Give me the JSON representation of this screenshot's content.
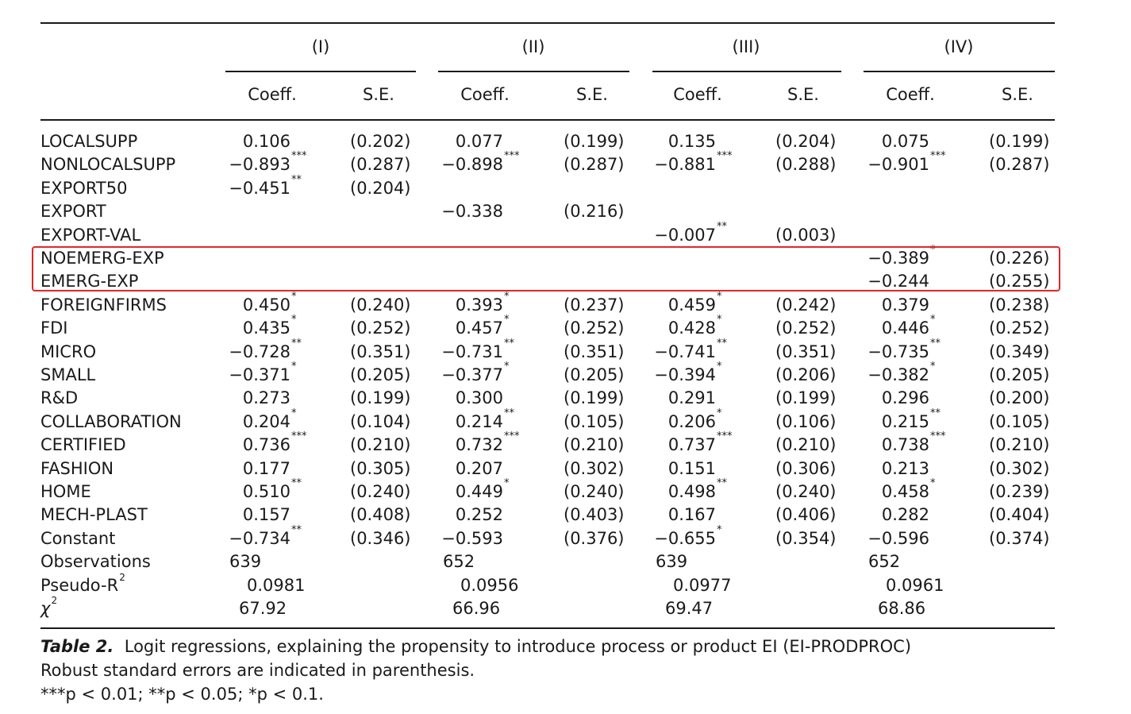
{
  "models": [
    {
      "name": "(I)",
      "coeff_label": "Coeff.",
      "se_label": "S.E."
    },
    {
      "name": "(II)",
      "coeff_label": "Coeff.",
      "se_label": "S.E."
    },
    {
      "name": "(III)",
      "coeff_label": "Coeff.",
      "se_label": "S.E."
    },
    {
      "name": "(IV)",
      "coeff_label": "Coeff.",
      "se_label": "S.E."
    }
  ],
  "rows": [
    {
      "label": "LOCALSUPP",
      "cells": [
        [
          "0.106",
          "",
          "(0.202)"
        ],
        [
          "0.077",
          "",
          "(0.199)"
        ],
        [
          "0.135",
          "",
          "(0.204)"
        ],
        [
          "0.075",
          "",
          "(0.199)"
        ]
      ]
    },
    {
      "label": "NONLOCALSUPP",
      "cells": [
        [
          "−0.893",
          "***",
          "(0.287)"
        ],
        [
          "−0.898",
          "***",
          "(0.287)"
        ],
        [
          "−0.881",
          "***",
          "(0.288)"
        ],
        [
          "−0.901",
          "***",
          "(0.287)"
        ]
      ]
    },
    {
      "label": "EXPORT50",
      "cells": [
        [
          "−0.451",
          "**",
          "(0.204)"
        ],
        [
          "",
          "",
          ""
        ],
        [
          "",
          "",
          ""
        ],
        [
          "",
          "",
          ""
        ]
      ]
    },
    {
      "label": "EXPORT",
      "cells": [
        [
          "",
          "",
          ""
        ],
        [
          "−0.338",
          "",
          "(0.216)"
        ],
        [
          "",
          "",
          ""
        ],
        [
          "",
          "",
          ""
        ]
      ]
    },
    {
      "label": "EXPORT-VAL",
      "cells": [
        [
          "",
          "",
          ""
        ],
        [
          "",
          "",
          ""
        ],
        [
          "−0.007",
          "**",
          "(0.003)"
        ],
        [
          "",
          "",
          ""
        ]
      ]
    },
    {
      "label": "NOEMERG-EXP",
      "cells": [
        [
          "",
          "",
          ""
        ],
        [
          "",
          "",
          ""
        ],
        [
          "",
          "",
          ""
        ],
        [
          "−0.389",
          "*",
          "(0.226)"
        ]
      ]
    },
    {
      "label": "EMERG-EXP",
      "cells": [
        [
          "",
          "",
          ""
        ],
        [
          "",
          "",
          ""
        ],
        [
          "",
          "",
          ""
        ],
        [
          "−0.244",
          "",
          "(0.255)"
        ]
      ]
    },
    {
      "label": "FOREIGNFIRMS",
      "cells": [
        [
          "0.450",
          "*",
          "(0.240)"
        ],
        [
          "0.393",
          "*",
          "(0.237)"
        ],
        [
          "0.459",
          "*",
          "(0.242)"
        ],
        [
          "0.379",
          "",
          "(0.238)"
        ]
      ]
    },
    {
      "label": "FDI",
      "cells": [
        [
          "0.435",
          "*",
          "(0.252)"
        ],
        [
          "0.457",
          "*",
          "(0.252)"
        ],
        [
          "0.428",
          "*",
          "(0.252)"
        ],
        [
          "0.446",
          "*",
          "(0.252)"
        ]
      ]
    },
    {
      "label": "MICRO",
      "cells": [
        [
          "−0.728",
          "**",
          "(0.351)"
        ],
        [
          "−0.731",
          "**",
          "(0.351)"
        ],
        [
          "−0.741",
          "**",
          "(0.351)"
        ],
        [
          "−0.735",
          "**",
          "(0.349)"
        ]
      ]
    },
    {
      "label": "SMALL",
      "cells": [
        [
          "−0.371",
          "*",
          "(0.205)"
        ],
        [
          "−0.377",
          "*",
          "(0.205)"
        ],
        [
          "−0.394",
          "*",
          "(0.206)"
        ],
        [
          "−0.382",
          "*",
          "(0.205)"
        ]
      ]
    },
    {
      "label": "R&D",
      "cells": [
        [
          "0.273",
          "",
          "(0.199)"
        ],
        [
          "0.300",
          "",
          "(0.199)"
        ],
        [
          "0.291",
          "",
          "(0.199)"
        ],
        [
          "0.296",
          "",
          "(0.200)"
        ]
      ]
    },
    {
      "label": "COLLABORATION",
      "cells": [
        [
          "0.204",
          "*",
          "(0.104)"
        ],
        [
          "0.214",
          "**",
          "(0.105)"
        ],
        [
          "0.206",
          "*",
          "(0.106)"
        ],
        [
          "0.215",
          "**",
          "(0.105)"
        ]
      ]
    },
    {
      "label": "CERTIFIED",
      "cells": [
        [
          "0.736",
          "***",
          "(0.210)"
        ],
        [
          "0.732",
          "***",
          "(0.210)"
        ],
        [
          "0.737",
          "***",
          "(0.210)"
        ],
        [
          "0.738",
          "***",
          "(0.210)"
        ]
      ]
    },
    {
      "label": "FASHION",
      "cells": [
        [
          "0.177",
          "",
          "(0.305)"
        ],
        [
          "0.207",
          "",
          "(0.302)"
        ],
        [
          "0.151",
          "",
          "(0.306)"
        ],
        [
          "0.213",
          "",
          "(0.302)"
        ]
      ]
    },
    {
      "label": "HOME",
      "cells": [
        [
          "0.510",
          "**",
          "(0.240)"
        ],
        [
          "0.449",
          "*",
          "(0.240)"
        ],
        [
          "0.498",
          "**",
          "(0.240)"
        ],
        [
          "0.458",
          "*",
          "(0.239)"
        ]
      ]
    },
    {
      "label": "MECH-PLAST",
      "cells": [
        [
          "0.157",
          "",
          "(0.408)"
        ],
        [
          "0.252",
          "",
          "(0.403)"
        ],
        [
          "0.167",
          "",
          "(0.406)"
        ],
        [
          "0.282",
          "",
          "(0.404)"
        ]
      ]
    },
    {
      "label": "Constant",
      "cells": [
        [
          "−0.734",
          "**",
          "(0.346)"
        ],
        [
          "−0.593",
          "",
          "(0.376)"
        ],
        [
          "−0.655",
          "*",
          "(0.354)"
        ],
        [
          "−0.596",
          "",
          "(0.374)"
        ]
      ]
    }
  ],
  "stats": [
    {
      "label": "Observations",
      "values": [
        "639",
        "652",
        "639",
        "652"
      ]
    },
    {
      "label": "Pseudo-R",
      "label_sup": "2",
      "values": [
        "0.0981",
        "0.0956",
        "0.0977",
        "0.0961"
      ]
    },
    {
      "label": "χ",
      "label_sup": "2",
      "values": [
        "67.92",
        "66.96",
        "69.47",
        "68.86"
      ]
    }
  ],
  "caption": {
    "table_no": "Table 2.",
    "title": "Logit regressions, explaining the propensity to introduce process or product EI (EI-PRODPROC)",
    "line2": "Robust standard errors are indicated in parenthesis.",
    "line3": "***p < 0.01; **p < 0.05; *p < 0.1."
  },
  "highlight_color": "#e3262a"
}
